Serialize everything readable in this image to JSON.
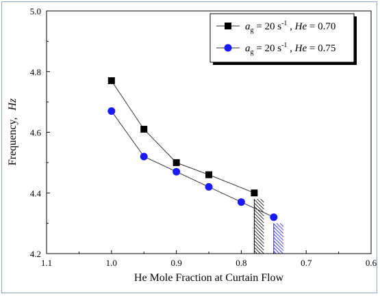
{
  "chart_data": {
    "type": "line",
    "title": "",
    "xlabel": "He Mole Fraction at Curtain Flow",
    "ylabel": "Frequency,",
    "ylabel_unit": "Hz",
    "xlim": [
      1.1,
      0.6
    ],
    "ylim": [
      4.2,
      5.0
    ],
    "x_ticks": [
      "1.1",
      "1.0",
      "0.9",
      "0.8",
      "0.7",
      "0.6"
    ],
    "y_ticks": [
      "4.2",
      "4.4",
      "4.6",
      "4.8",
      "5.0"
    ],
    "x_reversed": true,
    "grid": false,
    "legend_position": "top-right",
    "series": [
      {
        "name": "a_g = 20 s^-1, He = 0.70",
        "legend_parts": [
          "a",
          "g",
          " = 20 s",
          "-1",
          " , ",
          "He",
          " = 0.70"
        ],
        "marker": "square",
        "color": "#000000",
        "x": [
          1.0,
          0.95,
          0.9,
          0.85,
          0.78
        ],
        "y": [
          4.77,
          4.61,
          4.5,
          4.46,
          4.4
        ]
      },
      {
        "name": "a_g = 20 s^-1, He = 0.75",
        "legend_parts": [
          "a",
          "g",
          " = 20 s",
          "-1",
          " , ",
          "He",
          " = 0.75"
        ],
        "marker": "circle",
        "color": "#1a1aff",
        "x": [
          1.0,
          0.95,
          0.9,
          0.85,
          0.8,
          0.75
        ],
        "y": [
          4.67,
          4.52,
          4.47,
          4.42,
          4.37,
          4.32
        ]
      }
    ],
    "hatched_regions": [
      {
        "x_from": 0.78,
        "x_to": 0.765,
        "y_from": 4.2,
        "y_to": 4.38,
        "color": "#000000"
      },
      {
        "x_from": 0.75,
        "x_to": 0.735,
        "y_from": 4.2,
        "y_to": 4.3,
        "color": "#1a1aff"
      }
    ]
  }
}
